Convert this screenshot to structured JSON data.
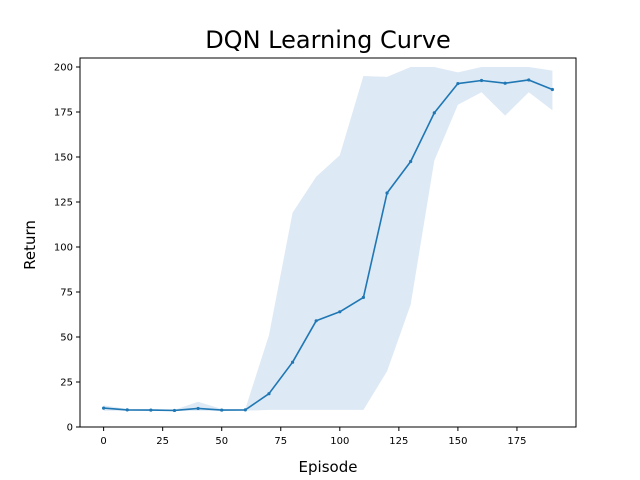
{
  "chart_data": {
    "type": "line",
    "title": "DQN Learning Curve",
    "xlabel": "Episode",
    "ylabel": "Return",
    "xlim": [
      -10,
      200
    ],
    "ylim": [
      0,
      205
    ],
    "xticks": [
      0,
      25,
      50,
      75,
      100,
      125,
      150,
      175
    ],
    "yticks": [
      0,
      25,
      50,
      75,
      100,
      125,
      150,
      175,
      200
    ],
    "grid": false,
    "series": [
      {
        "x": [
          0,
          10,
          20,
          30,
          40,
          50,
          60,
          70,
          80,
          90,
          100,
          110,
          120,
          130,
          140,
          150,
          160,
          170,
          180,
          190
        ],
        "y": [
          10.5,
          9.5,
          9.4,
          9.2,
          10.3,
          9.4,
          9.5,
          18.5,
          36.0,
          59.0,
          64.0,
          72.0,
          130.0,
          147.5,
          174.5,
          190.8,
          192.5,
          191.0,
          192.8,
          187.5
        ],
        "lower": [
          9.0,
          9.0,
          9.0,
          9.0,
          9.0,
          9.0,
          9.0,
          9.5,
          9.5,
          9.5,
          9.5,
          9.5,
          31.0,
          68.0,
          148.0,
          179.0,
          186.0,
          173.0,
          186.0,
          176.0
        ],
        "upper": [
          12.0,
          10.0,
          10.0,
          9.5,
          14.0,
          10.0,
          10.0,
          51.0,
          119.0,
          139.0,
          151.0,
          195.0,
          194.5,
          200.0,
          200.0,
          197.0,
          200.0,
          200.0,
          200.0,
          198.0
        ]
      }
    ],
    "colors": {
      "line": "#1f77b4",
      "band": "#dde9f5"
    }
  }
}
